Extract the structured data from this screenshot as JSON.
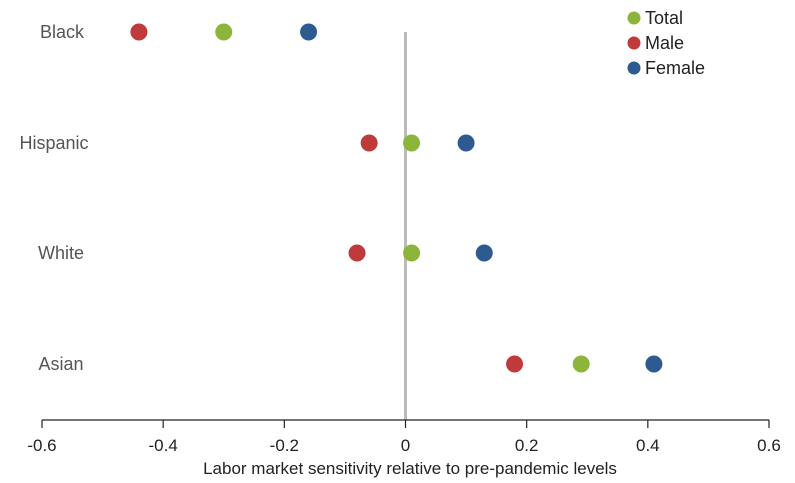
{
  "chart_data": {
    "type": "scatter",
    "title": "",
    "xlabel": "Labor market sensitivity relative to pre-pandemic levels",
    "ylabel": "",
    "xlim": [
      -0.6,
      0.6
    ],
    "xticks": [
      "-0.6",
      "-0.4",
      "-0.2",
      "0",
      "0.2",
      "0.4",
      "0.6"
    ],
    "xtick_values": [
      -0.6,
      -0.4,
      -0.2,
      0,
      0.2,
      0.4,
      0.6
    ],
    "categories": [
      "Black",
      "Hispanic",
      "White",
      "Asian"
    ],
    "grid": false,
    "reference_line_x": 0,
    "legend_position": "top-right",
    "series": [
      {
        "name": "Total",
        "color": "#8db53c",
        "values": [
          -0.3,
          0.01,
          0.01,
          0.29
        ]
      },
      {
        "name": "Male",
        "color": "#c0393b",
        "values": [
          -0.44,
          -0.06,
          -0.08,
          0.18
        ]
      },
      {
        "name": "Female",
        "color": "#2e5b8f",
        "values": [
          -0.16,
          0.1,
          0.13,
          0.41
        ]
      }
    ]
  }
}
